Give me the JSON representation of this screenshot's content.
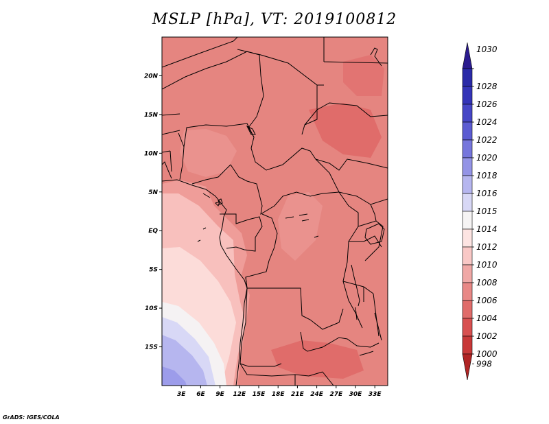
{
  "title": "MSLP [hPa], VT: 2019100812",
  "credit": "GrADS: IGES/COLA",
  "map": {
    "extent": {
      "lon": [
        0,
        35
      ],
      "lat": [
        -20,
        25
      ]
    },
    "lat_ticks": [
      {
        "value": 20,
        "label": "20N"
      },
      {
        "value": 15,
        "label": "15N"
      },
      {
        "value": 10,
        "label": "10N"
      },
      {
        "value": 5,
        "label": "5N"
      },
      {
        "value": 0,
        "label": "EQ"
      },
      {
        "value": -5,
        "label": "5S"
      },
      {
        "value": -10,
        "label": "10S"
      },
      {
        "value": -15,
        "label": "15S"
      }
    ],
    "lon_ticks": [
      {
        "value": 3,
        "label": "3E"
      },
      {
        "value": 6,
        "label": "6E"
      },
      {
        "value": 9,
        "label": "9E"
      },
      {
        "value": 12,
        "label": "12E"
      },
      {
        "value": 15,
        "label": "15E"
      },
      {
        "value": 18,
        "label": "18E"
      },
      {
        "value": 21,
        "label": "21E"
      },
      {
        "value": 24,
        "label": "24E"
      },
      {
        "value": 27,
        "label": "27E"
      },
      {
        "value": 30,
        "label": "30E"
      },
      {
        "value": 33,
        "label": "33E"
      }
    ]
  },
  "colorbar": {
    "levels": [
      {
        "label": "1030",
        "color": "#2b1b8f"
      },
      {
        "label": "1028",
        "color": "#2a2aa8"
      },
      {
        "label": "1026",
        "color": "#3434b8"
      },
      {
        "label": "1024",
        "color": "#4646c6"
      },
      {
        "label": "1022",
        "color": "#5c5cd2"
      },
      {
        "label": "1020",
        "color": "#7676dc"
      },
      {
        "label": "1018",
        "color": "#9494e6"
      },
      {
        "label": "1016",
        "color": "#b6b6ef"
      },
      {
        "label": "1015",
        "color": "#d8d8f6"
      },
      {
        "label": "1014",
        "color": "#f6f4f4"
      },
      {
        "label": "1012",
        "color": "#fde4e2"
      },
      {
        "label": "1010",
        "color": "#f9c8c6"
      },
      {
        "label": "1008",
        "color": "#f0a8a6"
      },
      {
        "label": "1006",
        "color": "#e88886"
      },
      {
        "label": "1004",
        "color": "#e06c6a"
      },
      {
        "label": "1002",
        "color": "#d85050"
      },
      {
        "label": "1000",
        "color": "#c83838"
      },
      {
        "label": "998",
        "color": "#b02424"
      }
    ]
  }
}
